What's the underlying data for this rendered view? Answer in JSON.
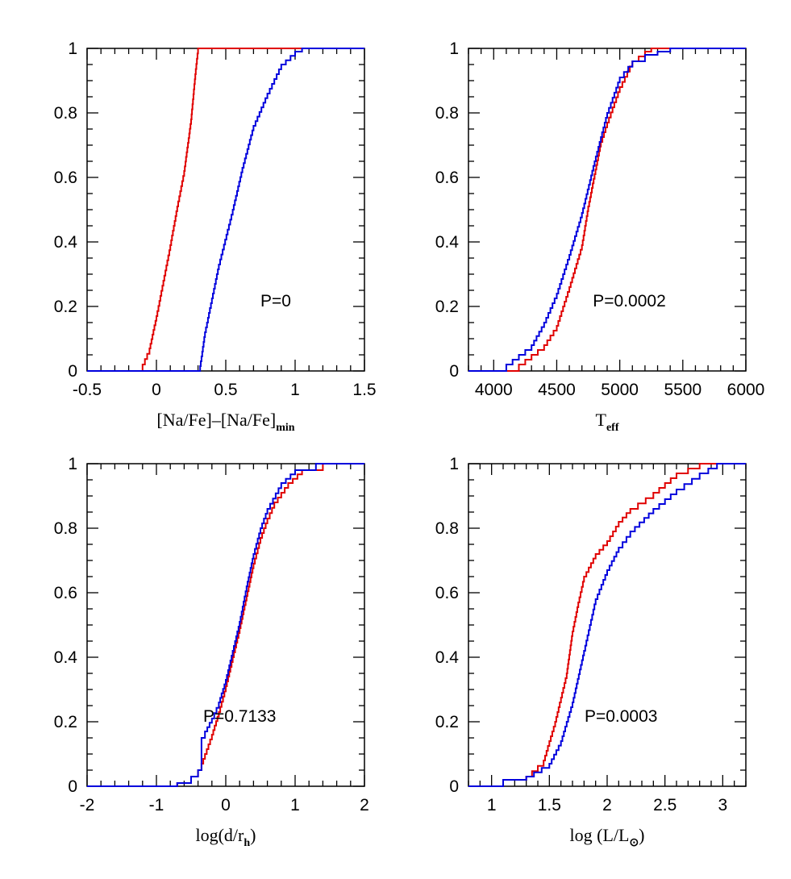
{
  "chart_data": [
    {
      "type": "line",
      "chart": "cdf-na-fe",
      "title": "",
      "xlabel_parts": [
        "[Na/Fe]–[Na/Fe]",
        "min"
      ],
      "ylabel": "",
      "xlim": [
        -0.5,
        1.5
      ],
      "ylim": [
        0,
        1
      ],
      "xticks": [
        "-0.5",
        "0",
        "0.5",
        "1",
        "1.5"
      ],
      "yticks": [
        "0",
        "0.2",
        "0.4",
        "0.6",
        "0.8",
        "1"
      ],
      "annotation": "P=0",
      "series": [
        {
          "color": "#e00000",
          "x": [
            -0.5,
            -0.12,
            -0.1,
            -0.05,
            0.0,
            0.05,
            0.1,
            0.15,
            0.2,
            0.25,
            0.28,
            0.3,
            0.35,
            1.5
          ],
          "y": [
            0,
            0,
            0.02,
            0.07,
            0.17,
            0.28,
            0.39,
            0.51,
            0.62,
            0.78,
            0.92,
            1.0,
            1.0,
            1.0
          ]
        },
        {
          "color": "#0000dd",
          "x": [
            -0.5,
            0.31,
            0.35,
            0.45,
            0.55,
            0.62,
            0.7,
            0.8,
            0.9,
            1.0,
            1.05,
            1.1,
            1.5
          ],
          "y": [
            0,
            0,
            0.12,
            0.33,
            0.5,
            0.63,
            0.76,
            0.86,
            0.95,
            0.99,
            1.0,
            1.0,
            1.0
          ]
        }
      ]
    },
    {
      "type": "line",
      "chart": "cdf-teff",
      "title": "",
      "xlabel_parts": [
        "T",
        "eff"
      ],
      "ylabel": "",
      "xlim": [
        3800,
        6000
      ],
      "ylim": [
        0,
        1
      ],
      "xticks": [
        "4000",
        "4500",
        "5000",
        "5500",
        "6000"
      ],
      "yticks": [
        "0",
        "0.2",
        "0.4",
        "0.6",
        "0.8",
        "1"
      ],
      "annotation": "P=0.0002",
      "series": [
        {
          "color": "#e00000",
          "x": [
            3800,
            4150,
            4200,
            4300,
            4400,
            4500,
            4600,
            4700,
            4750,
            4800,
            4850,
            4900,
            5000,
            5100,
            5200,
            5250,
            6000
          ],
          "y": [
            0,
            0,
            0.02,
            0.05,
            0.08,
            0.14,
            0.26,
            0.39,
            0.51,
            0.61,
            0.71,
            0.77,
            0.88,
            0.96,
            0.99,
            1.0,
            1.0
          ]
        },
        {
          "color": "#0000dd",
          "x": [
            3800,
            4050,
            4100,
            4200,
            4300,
            4400,
            4500,
            4600,
            4700,
            4800,
            4900,
            5000,
            5100,
            5200,
            5300,
            5400,
            6000
          ],
          "y": [
            0,
            0,
            0.02,
            0.05,
            0.08,
            0.15,
            0.24,
            0.36,
            0.49,
            0.65,
            0.8,
            0.91,
            0.96,
            0.98,
            0.99,
            1.0,
            1.0
          ]
        }
      ]
    },
    {
      "type": "line",
      "chart": "cdf-log-d-rh",
      "title": "",
      "xlabel_parts": [
        "log(d/r",
        "h",
        ")"
      ],
      "ylabel": "",
      "xlim": [
        -2,
        2
      ],
      "ylim": [
        0,
        1
      ],
      "xticks": [
        "-2",
        "-1",
        "0",
        "1",
        "2"
      ],
      "yticks": [
        "0",
        "0.2",
        "0.4",
        "0.6",
        "0.8",
        "1"
      ],
      "annotation": "P=0.7133",
      "series": [
        {
          "color": "#e00000",
          "x": [
            -2,
            -1,
            -0.7,
            -0.5,
            -0.4,
            -0.35,
            -0.3,
            -0.2,
            -0.1,
            0.0,
            0.1,
            0.2,
            0.3,
            0.4,
            0.5,
            0.6,
            0.7,
            0.9,
            1.1,
            1.4,
            2
          ],
          "y": [
            0,
            0,
            0.01,
            0.03,
            0.05,
            0.07,
            0.1,
            0.16,
            0.23,
            0.31,
            0.4,
            0.49,
            0.59,
            0.69,
            0.77,
            0.83,
            0.88,
            0.94,
            0.98,
            1.0,
            1.0
          ]
        },
        {
          "color": "#0000dd",
          "x": [
            -2,
            -1,
            -0.7,
            -0.5,
            -0.4,
            -0.35,
            -0.35,
            -0.3,
            -0.2,
            -0.1,
            0.0,
            0.1,
            0.2,
            0.3,
            0.4,
            0.5,
            0.6,
            0.8,
            1.0,
            1.3,
            2
          ],
          "y": [
            0,
            0,
            0.01,
            0.03,
            0.05,
            0.07,
            0.15,
            0.17,
            0.21,
            0.26,
            0.33,
            0.42,
            0.51,
            0.62,
            0.72,
            0.8,
            0.86,
            0.94,
            0.98,
            1.0,
            1.0
          ]
        }
      ]
    },
    {
      "type": "line",
      "chart": "cdf-log-l-lsun",
      "title": "",
      "xlabel_parts": [
        "log  (L/L",
        "⊙",
        ")"
      ],
      "ylabel": "",
      "xlim": [
        0.8,
        3.2
      ],
      "ylim": [
        0,
        1
      ],
      "xticks": [
        "1",
        "1.5",
        "2",
        "2.5",
        "3"
      ],
      "yticks": [
        "0",
        "0.2",
        "0.4",
        "0.6",
        "0.8",
        "1"
      ],
      "annotation": "P=0.0003",
      "series": [
        {
          "color": "#e00000",
          "x": [
            0.8,
            1.0,
            1.1,
            1.3,
            1.45,
            1.55,
            1.65,
            1.7,
            1.75,
            1.8,
            1.9,
            2.0,
            2.1,
            2.2,
            2.4,
            2.6,
            2.8,
            3.2
          ],
          "y": [
            0,
            0,
            0.02,
            0.03,
            0.08,
            0.2,
            0.35,
            0.48,
            0.57,
            0.65,
            0.72,
            0.76,
            0.82,
            0.86,
            0.91,
            0.97,
            1.0,
            1.0
          ]
        },
        {
          "color": "#0000dd",
          "x": [
            0.8,
            1.0,
            1.1,
            1.3,
            1.5,
            1.6,
            1.7,
            1.8,
            1.85,
            1.9,
            2.0,
            2.1,
            2.2,
            2.4,
            2.6,
            2.8,
            2.95,
            3.2
          ],
          "y": [
            0,
            0,
            0.02,
            0.03,
            0.07,
            0.14,
            0.26,
            0.42,
            0.5,
            0.58,
            0.67,
            0.74,
            0.79,
            0.86,
            0.92,
            0.97,
            1.0,
            1.0
          ]
        }
      ]
    }
  ]
}
